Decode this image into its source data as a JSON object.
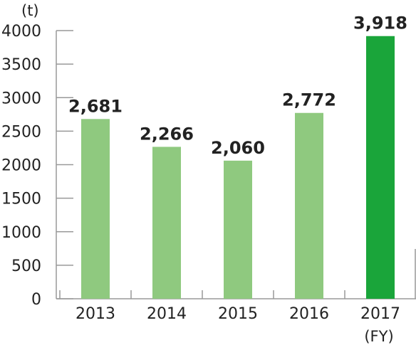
{
  "chart_data": {
    "type": "bar",
    "categories": [
      "2013",
      "2014",
      "2015",
      "2016",
      "2017"
    ],
    "values": [
      2681,
      2266,
      2060,
      2772,
      3918
    ],
    "value_labels": [
      "2,681",
      "2,266",
      "2,060",
      "2,772",
      "3,918"
    ],
    "ylabel": "(t)",
    "xlabel": "(FY)",
    "ylim": [
      0,
      4000
    ],
    "yticks": [
      0,
      500,
      1000,
      1500,
      2000,
      2500,
      3000,
      3500,
      4000
    ],
    "grid": false,
    "highlight_index": 4,
    "colors": {
      "bar": "#8fc97f",
      "highlight": "#1aa53a",
      "axis": "#999999",
      "text": "#222222"
    }
  }
}
